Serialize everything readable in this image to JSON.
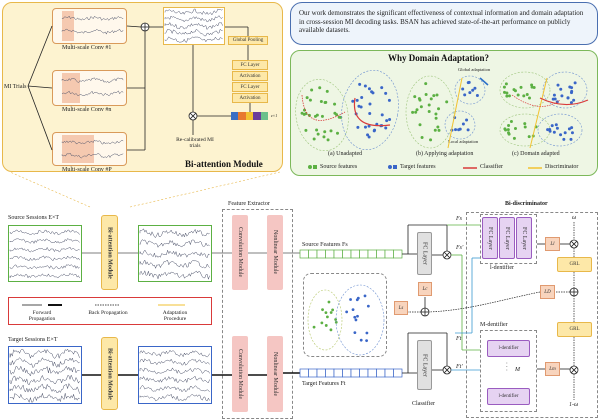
{
  "attention": {
    "title": "Bi-attention Module",
    "mi_trials": "MI Trials",
    "convs": [
      "Multi-scale Conv #1",
      "Multi-scale Conv #n",
      "Multi-scale Conv #P"
    ],
    "global_pooling": "Global Pooling",
    "layers": [
      "FC Layer",
      "Activation",
      "FC Layer",
      "Activation"
    ],
    "weight_dim": "z×1",
    "recalibrated": "Re-calibrated MI trials",
    "bar_colors": [
      "#3b6fc4",
      "#e8792f",
      "#f2c230",
      "#6a3d9a",
      "#6cc08b"
    ]
  },
  "summary": "Our work demonstrates the significant effectiveness of contextual information and domain adaptation in cross-session MI decoding tasks. BSAN has achieved state-of-the-art performance on publicly available datasets.",
  "why": {
    "title": "Why Domain Adaptation?",
    "global": "Global adaptation",
    "local": "Local adaptation",
    "captions": [
      "(a) Unadapted",
      "(b) Applying adaptation",
      "(c) Domain adapted"
    ],
    "legend": [
      "Source features",
      "Target features",
      "Classifier",
      "Discriminator"
    ],
    "colors": {
      "source": "#5cb043",
      "target": "#3a66c8",
      "classifier": "#d93a3a",
      "discriminator": "#f2c230"
    }
  },
  "pipeline": {
    "source_sessions": "Source Sessions  E×T",
    "target_sessions": "Target Sessions  E×T",
    "bi_attention": "Bi-attention Module",
    "feature_extractor": "Feature Extractor",
    "conv_module": "Convolution Module",
    "nonlinear_module": "Nonlinear Module",
    "legend": [
      "Forward Propagation",
      "Back Propagation",
      "Adaptation Procedure"
    ],
    "source_features": "Source Features Fs",
    "target_features": "Target Features Ft",
    "fc_layer": "FC Layer",
    "classifier": "Classifier",
    "lc": "Lc",
    "ls": "Ls",
    "fs": "Fs",
    "fs2": "Fs'",
    "ft": "Ft",
    "ft2": "Ft'"
  },
  "disc": {
    "title": "Bi-discriminator",
    "l_dentifier": "l-dentifier",
    "m_dentifier": "M-dentifier",
    "fc": "FC Layer",
    "ll": "Ll",
    "ld": "LD",
    "lm": "Lm",
    "grl": "GRL",
    "omega": "ω",
    "one_minus_omega": "1-ω",
    "m": "M",
    "dots": "·  ·  ·"
  }
}
